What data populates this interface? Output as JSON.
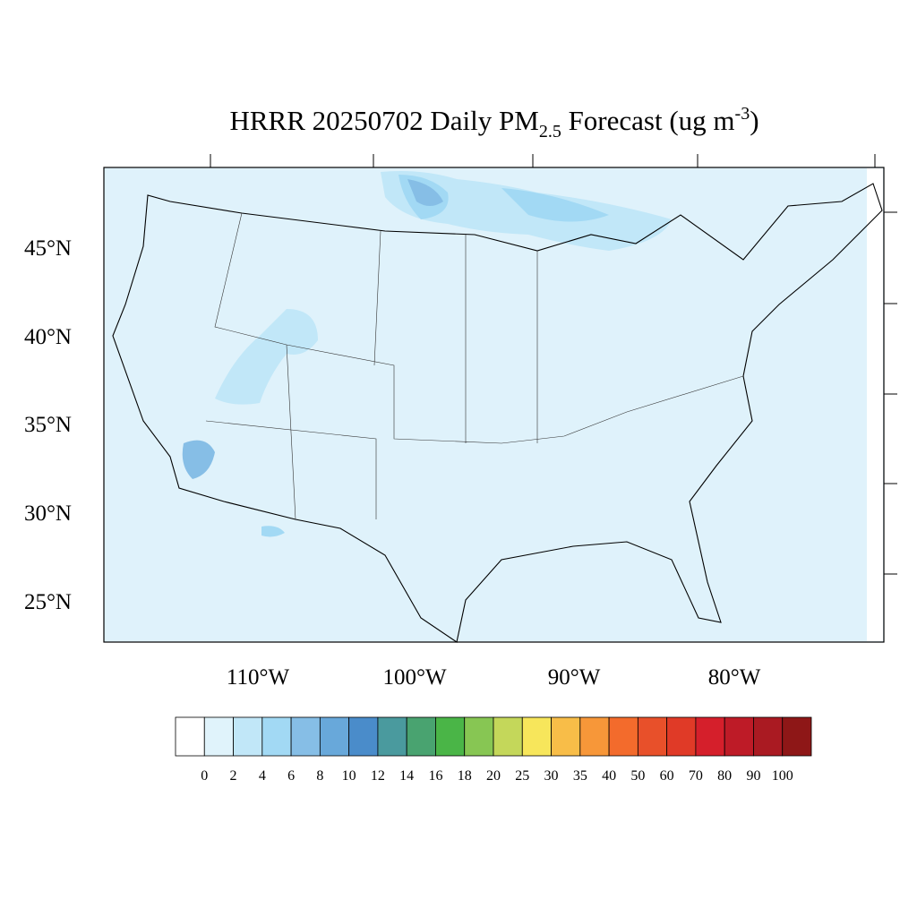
{
  "title": {
    "main": "HRRR 20250702 Daily PM",
    "subscript": "2.5",
    "middle": " Forecast (ug m",
    "superscript": "-3",
    "end": ")"
  },
  "lat_labels": [
    "45°N",
    "40°N",
    "35°N",
    "30°N",
    "25°N"
  ],
  "lon_labels": [
    "110°W",
    "100°W",
    "90°W",
    "80°W"
  ],
  "colorbar": {
    "labels": [
      "0",
      "2",
      "4",
      "6",
      "8",
      "10",
      "12",
      "14",
      "16",
      "18",
      "20",
      "25",
      "30",
      "35",
      "40",
      "50",
      "60",
      "70",
      "80",
      "90",
      "100"
    ],
    "colors": [
      "#ffffff",
      "#e0f3fb",
      "#c1e7f8",
      "#a2d9f4",
      "#86bee6",
      "#68a8da",
      "#4a8cca",
      "#4a9a9e",
      "#49a370",
      "#4ab547",
      "#87c653",
      "#c4d75a",
      "#f7e65b",
      "#f8bd48",
      "#f79739",
      "#f36b2c",
      "#e8502a",
      "#e03a27",
      "#d51f2b",
      "#be1b27",
      "#aa1a22",
      "#8e1717"
    ]
  }
}
